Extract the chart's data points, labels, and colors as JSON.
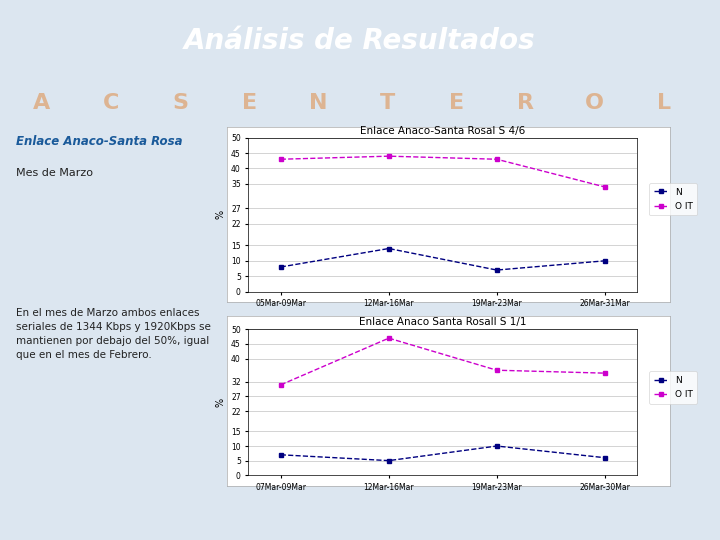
{
  "title": "Análisis de Resultados",
  "slide_bg": "#dce6f0",
  "header_bg": "#1a5a9a",
  "footer_bg": "#1a5a9a",
  "left_title": "Enlace Anaco-Santa Rosa",
  "left_subtitle": "Mes de Marzo",
  "left_text": "En el mes de Marzo ambos enlaces\nseriales de 1344 Kbps y 1920Kbps se\nmantienen por debajo del 50%, igual\nque en el mes de Febrero.",
  "chart1_title": "Enlace Anaco-Santa Rosal S 4/6",
  "chart1_xlabel": [
    "05Mar-09Mar",
    "12Mar-16Mar",
    "19Mar-23Mar",
    "26Mar-31Mar"
  ],
  "chart1_ylabel": "%",
  "chart1_ylim": [
    0,
    50
  ],
  "chart1_yticks": [
    0,
    5,
    10,
    15,
    22,
    27,
    35,
    40,
    45,
    50
  ],
  "chart1_N": [
    8,
    14,
    7,
    10
  ],
  "chart1_OIT": [
    43,
    44,
    43,
    34
  ],
  "chart2_title": "Enlace Anaco Santa Rosall S 1/1",
  "chart2_xlabel": [
    "07Mar-09Mar",
    "12Mar-16Mar",
    "19Mar-23Mar",
    "26Mar-30Mar"
  ],
  "chart2_ylabel": "%",
  "chart2_ylim": [
    0,
    50
  ],
  "chart2_yticks": [
    0,
    5,
    10,
    15,
    22,
    27,
    32,
    40,
    45,
    50
  ],
  "chart2_N": [
    7,
    5,
    10,
    6
  ],
  "chart2_OIT": [
    31,
    47,
    36,
    35
  ],
  "color_N": "#000080",
  "color_OIT": "#cc00cc",
  "watermark_letters": [
    "A",
    "C",
    "S",
    "E",
    "N",
    "T",
    "E",
    "R",
    "O",
    "L"
  ],
  "watermark_color": "#e07820",
  "chart_bg": "#ffffff",
  "legend1_labels": [
    "N",
    "O IT"
  ],
  "legend2_labels": [
    "N",
    "O IT"
  ]
}
